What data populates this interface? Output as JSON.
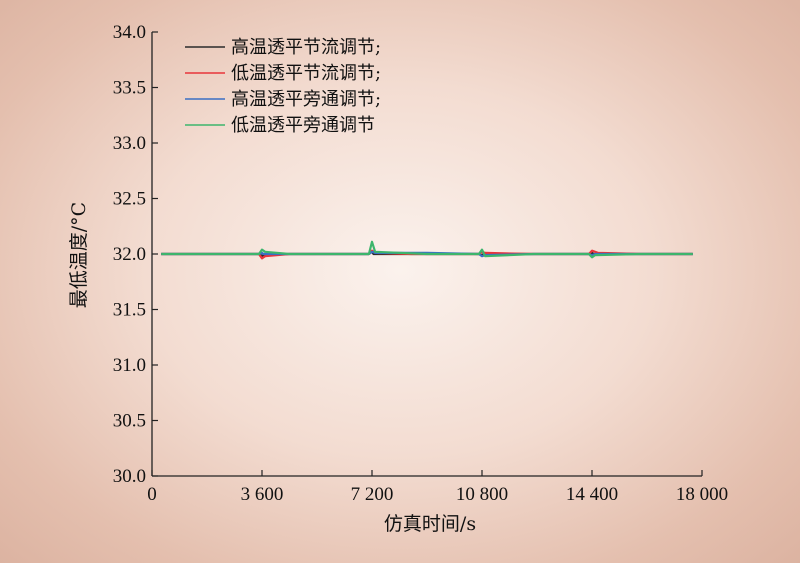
{
  "chart_data": {
    "type": "line",
    "title": "",
    "xlabel": "仿真时间/s",
    "ylabel": "最低温度/°C",
    "xlim": [
      0,
      18000
    ],
    "ylim": [
      30.0,
      34.0
    ],
    "xticks": [
      0,
      3600,
      7200,
      10800,
      14400,
      18000
    ],
    "xtick_labels": [
      "0",
      "3 600",
      "7 200",
      "10 800",
      "14 400",
      "18 000"
    ],
    "yticks": [
      30.0,
      30.5,
      31.0,
      31.5,
      32.0,
      32.5,
      33.0,
      33.5,
      34.0
    ],
    "ytick_labels": [
      "30.0",
      "30.5",
      "31.0",
      "31.5",
      "32.0",
      "32.5",
      "33.0",
      "33.5",
      "34.0"
    ],
    "grid": false,
    "legend_position": "top-left",
    "series": [
      {
        "name": "高温透平节流调节;",
        "color": "#2b2b2b",
        "x": [
          300,
          3500,
          3600,
          3650,
          4500,
          7100,
          7200,
          7250,
          8500,
          10700,
          10800,
          10850,
          12500,
          14300,
          14400,
          14450,
          16000,
          17700
        ],
        "y": [
          32.0,
          32.0,
          31.98,
          31.99,
          32.0,
          32.0,
          32.02,
          32.0,
          32.0,
          32.0,
          31.99,
          32.0,
          32.0,
          32.0,
          32.01,
          32.0,
          32.0,
          32.0
        ]
      },
      {
        "name": "低温透平节流调节;",
        "color": "#e8353b",
        "x": [
          300,
          3500,
          3600,
          3700,
          4500,
          7100,
          7200,
          7300,
          8500,
          10700,
          10800,
          10900,
          12500,
          14300,
          14400,
          14600,
          16000,
          17700
        ],
        "y": [
          32.0,
          32.0,
          31.96,
          31.98,
          32.0,
          32.0,
          32.03,
          32.01,
          32.0,
          32.0,
          32.02,
          32.01,
          32.0,
          32.0,
          32.03,
          32.01,
          32.0,
          32.0
        ]
      },
      {
        "name": "高温透平旁通调节;",
        "color": "#3a6fc4",
        "x": [
          300,
          3500,
          3600,
          3650,
          4500,
          7100,
          7200,
          7300,
          9000,
          10700,
          10800,
          10900,
          12500,
          14300,
          14400,
          14500,
          16000,
          17700
        ],
        "y": [
          32.0,
          32.0,
          32.01,
          32.0,
          32.0,
          32.0,
          32.02,
          32.01,
          32.01,
          32.0,
          31.98,
          31.99,
          32.0,
          32.0,
          31.99,
          32.0,
          32.0,
          32.0
        ]
      },
      {
        "name": "低温透平旁通调节",
        "color": "#3db56c",
        "x": [
          300,
          3500,
          3600,
          3700,
          4500,
          7100,
          7200,
          7300,
          9000,
          10700,
          10800,
          10900,
          12500,
          14300,
          14400,
          14500,
          16000,
          17700
        ],
        "y": [
          32.0,
          32.0,
          32.04,
          32.02,
          32.0,
          32.0,
          32.11,
          32.02,
          32.0,
          32.0,
          32.04,
          31.98,
          32.0,
          32.0,
          31.97,
          31.99,
          32.0,
          32.0
        ]
      }
    ]
  }
}
